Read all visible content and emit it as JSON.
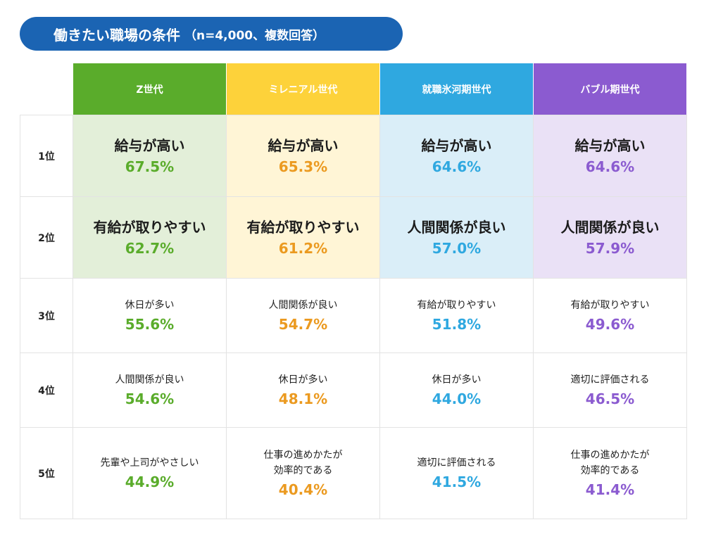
{
  "title": {
    "main": "働きたい職場の条件",
    "sub": "（n=4,000、複数回答）"
  },
  "colors": {
    "title_bg": "#1b64b3",
    "generations": [
      "#5aac2b",
      "#fdd23a",
      "#2fa8e0",
      "#8b5bd0"
    ],
    "generation_text": [
      "#5aac2b",
      "#eb9a20",
      "#2fa8e0",
      "#8b5bd0"
    ],
    "top_rank_bg": [
      "#e3efd9",
      "#fff5d6",
      "#daeef8",
      "#eae1f6"
    ]
  },
  "chart_data": {
    "type": "table",
    "title": "働きたい職場の条件（n=4,000、複数回答）",
    "columns": [
      "Z世代",
      "ミレニアル世代",
      "就職氷河期世代",
      "バブル期世代"
    ],
    "rows": [
      "1位",
      "2位",
      "3位",
      "4位",
      "5位"
    ],
    "cells": [
      [
        {
          "label": "給与が高い",
          "pct": "67.5%"
        },
        {
          "label": "給与が高い",
          "pct": "65.3%"
        },
        {
          "label": "給与が高い",
          "pct": "64.6%"
        },
        {
          "label": "給与が高い",
          "pct": "64.6%"
        }
      ],
      [
        {
          "label": "有給が取りやすい",
          "pct": "62.7%"
        },
        {
          "label": "有給が取りやすい",
          "pct": "61.2%"
        },
        {
          "label": "人間関係が良い",
          "pct": "57.0%"
        },
        {
          "label": "人間関係が良い",
          "pct": "57.9%"
        }
      ],
      [
        {
          "label": "休日が多い",
          "pct": "55.6%"
        },
        {
          "label": "人間関係が良い",
          "pct": "54.7%"
        },
        {
          "label": "有給が取りやすい",
          "pct": "51.8%"
        },
        {
          "label": "有給が取りやすい",
          "pct": "49.6%"
        }
      ],
      [
        {
          "label": "人間関係が良い",
          "pct": "54.6%"
        },
        {
          "label": "休日が多い",
          "pct": "48.1%"
        },
        {
          "label": "休日が多い",
          "pct": "44.0%"
        },
        {
          "label": "適切に評価される",
          "pct": "46.5%"
        }
      ],
      [
        {
          "label": "先輩や上司がやさしい",
          "pct": "44.9%"
        },
        {
          "label": "仕事の進めかたが\n効率的である",
          "pct": "40.4%"
        },
        {
          "label": "適切に評価される",
          "pct": "41.5%"
        },
        {
          "label": "仕事の進めかたが\n効率的である",
          "pct": "41.4%"
        }
      ]
    ]
  }
}
